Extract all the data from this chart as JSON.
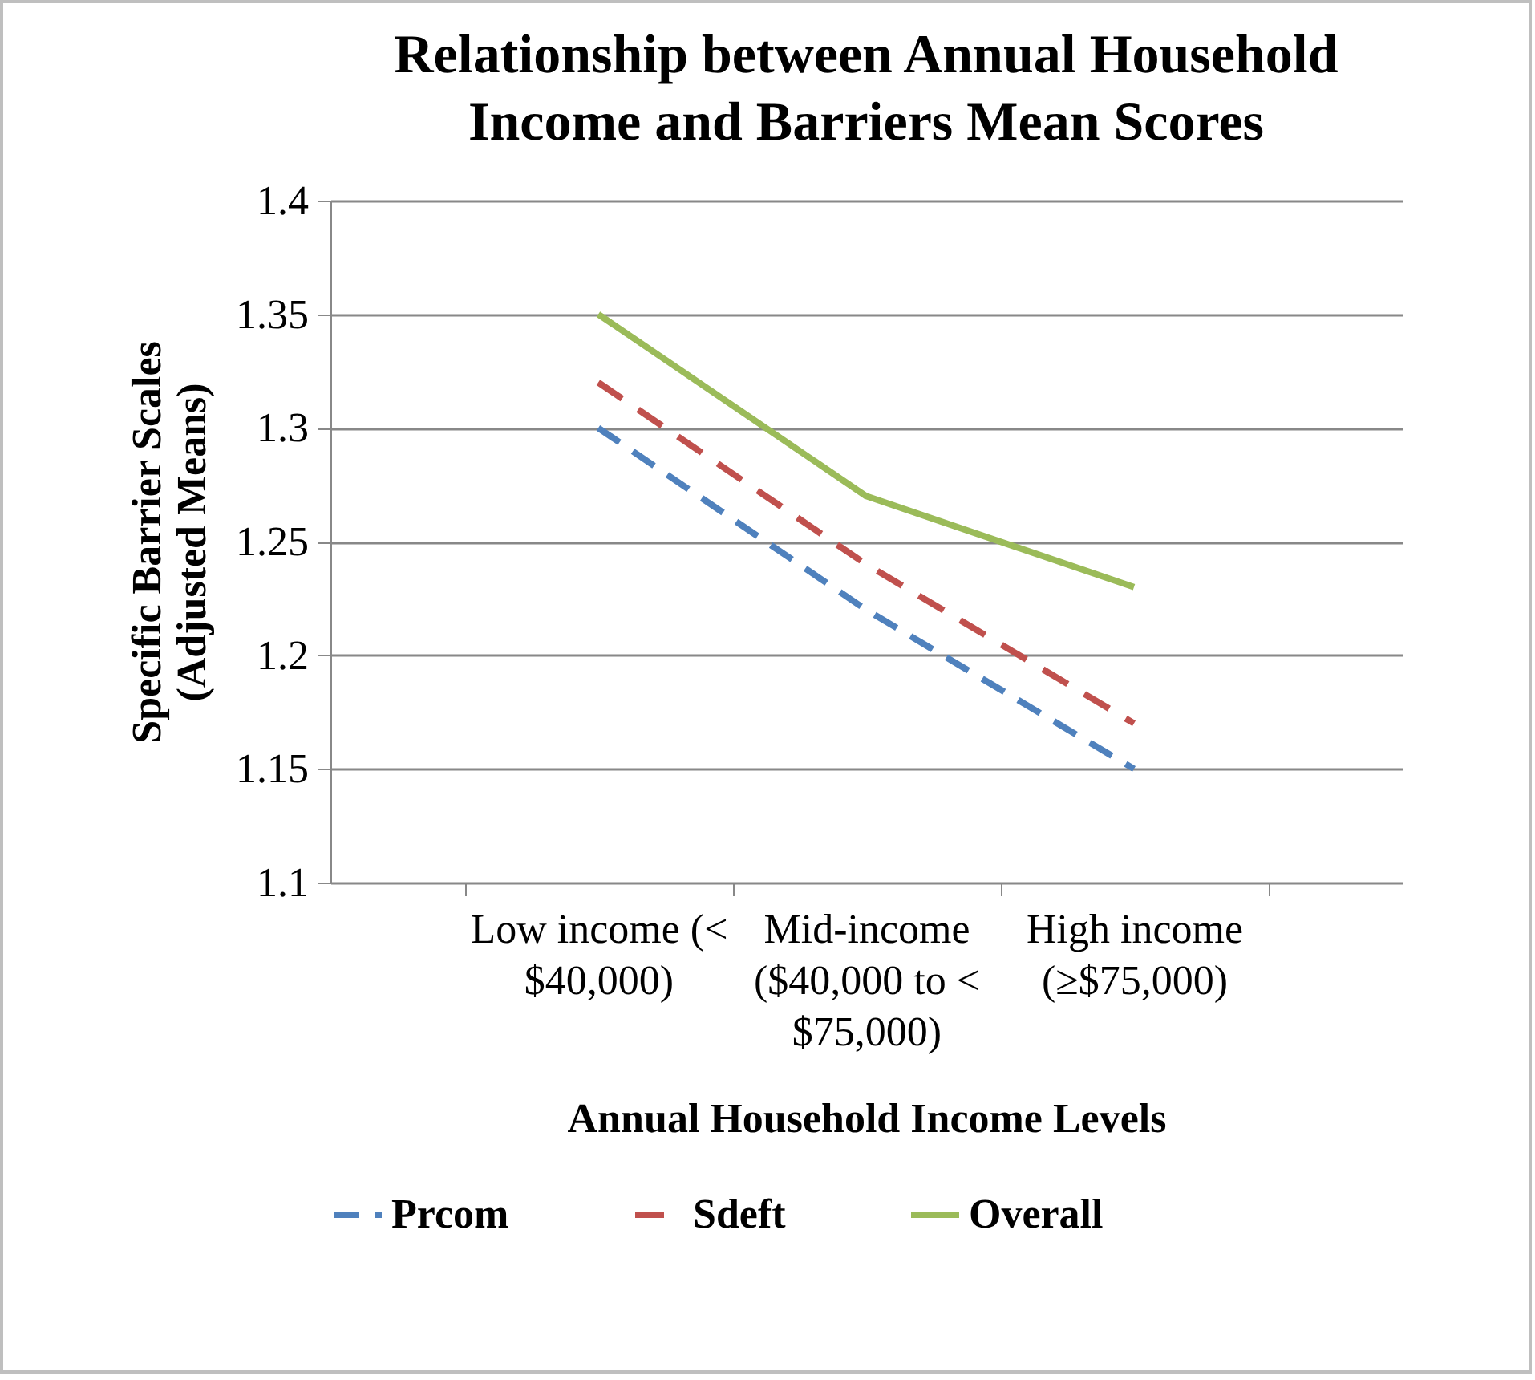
{
  "chart_data": {
    "type": "line",
    "title": "Relationship between Annual Household Income and Barriers Mean Scores",
    "xlabel": "Annual Household Income Levels",
    "ylabel": "Specific Barrier Scales (Adjusted Means)",
    "categories": [
      "Low income (< $40,000)",
      "Mid-income ($40,000 to < $75,000)",
      "High income (≥$75,000)"
    ],
    "series": [
      {
        "name": "Prcom",
        "color": "#4f81bd",
        "line_style": "dashed",
        "values": [
          1.3,
          1.22,
          1.15
        ]
      },
      {
        "name": "Sdeft",
        "color": "#c0504d",
        "line_style": "dashed",
        "values": [
          1.32,
          1.24,
          1.17
        ]
      },
      {
        "name": "Overall",
        "color": "#9bbb59",
        "line_style": "solid",
        "values": [
          1.35,
          1.27,
          1.23
        ]
      }
    ],
    "ylim": [
      1.1,
      1.4
    ],
    "yticks": [
      1.1,
      1.15,
      1.2,
      1.25,
      1.3,
      1.35,
      1.4
    ],
    "grid": "y",
    "legend": "bottom",
    "marker": "none"
  }
}
